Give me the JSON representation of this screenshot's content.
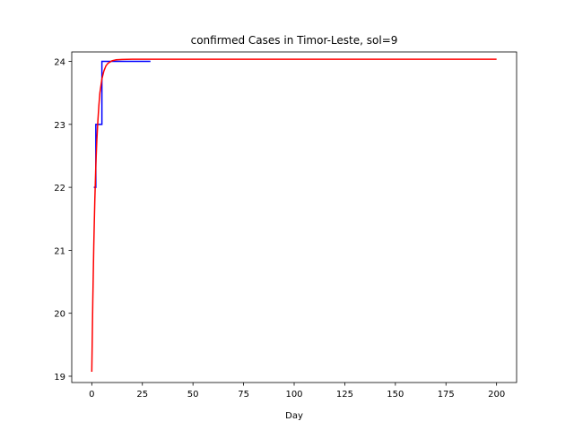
{
  "chart_data": {
    "type": "line",
    "title": "confirmed Cases in Timor-Leste, sol=9",
    "xlabel": "Day",
    "ylabel": "",
    "xlim": [
      -9.9,
      209.9
    ],
    "ylim": [
      18.9,
      24.15
    ],
    "xticks": [
      0,
      25,
      50,
      75,
      100,
      125,
      150,
      175,
      200
    ],
    "yticks": [
      19,
      20,
      21,
      22,
      23,
      24
    ],
    "grid": false,
    "legend": "none",
    "series": [
      {
        "color": "#0000ff",
        "step": true,
        "x": [
          1,
          2,
          3,
          4,
          5,
          6,
          7,
          8,
          9,
          10,
          11,
          12,
          13,
          14,
          15,
          16,
          17,
          18,
          19,
          20,
          21,
          22,
          23,
          24,
          25,
          26,
          27,
          28,
          29
        ],
        "y": [
          22,
          23,
          23,
          23,
          24,
          24,
          24,
          24,
          24,
          24,
          24,
          24,
          24,
          24,
          24,
          24,
          24,
          24,
          24,
          24,
          24,
          24,
          24,
          24,
          24,
          24,
          24,
          24,
          24
        ]
      },
      {
        "color": "#ff0000",
        "step": false,
        "x": [
          0,
          0.5,
          1,
          1.5,
          2,
          2.5,
          3,
          3.5,
          4,
          5,
          6,
          7,
          8,
          10,
          12,
          15,
          20,
          30,
          50,
          100,
          150,
          200
        ],
        "y": [
          19.07,
          20.2,
          21.1,
          21.8,
          22.35,
          22.75,
          23.05,
          23.3,
          23.5,
          23.72,
          23.85,
          23.93,
          23.97,
          24.01,
          24.025,
          24.03,
          24.035,
          24.035,
          24.035,
          24.035,
          24.035,
          24.035
        ]
      }
    ]
  }
}
